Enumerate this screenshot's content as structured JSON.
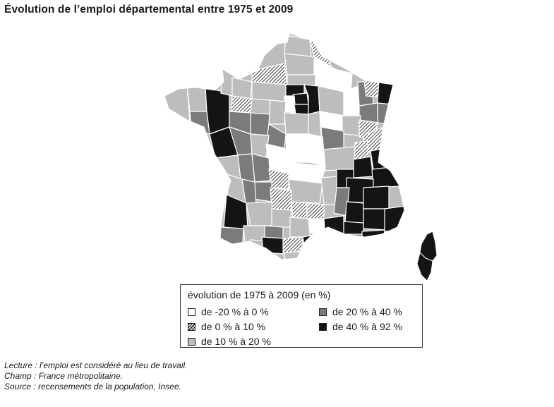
{
  "title": "Évolution de l’emploi départemental entre 1975 et 2009",
  "map": {
    "region": "France métropolitaine (départements)",
    "classes": {
      "neg": {
        "color": "#ffffff",
        "pattern": "none"
      },
      "low": {
        "color": "#ffffff",
        "pattern": "hatch"
      },
      "light": {
        "color": "#bdbdbd",
        "pattern": "none"
      },
      "mid": {
        "color": "#7b7b7b",
        "pattern": "none"
      },
      "dark": {
        "color": "#141414",
        "pattern": "none"
      }
    }
  },
  "legend": {
    "title": "évolution de 1975 à 2009 (en %)",
    "items": [
      {
        "key": "neg",
        "label": "de -20 % à 0 %"
      },
      {
        "key": "low",
        "label": "de 0 % à 10 %"
      },
      {
        "key": "light",
        "label": "de 10 % à 20 %"
      },
      {
        "key": "mid",
        "label": "de 20 % à 40 %"
      },
      {
        "key": "dark",
        "label": "de 40 % à 92 %"
      }
    ]
  },
  "notes": {
    "lecture": "Lecture : l’emploi est considéré au lieu de travail.",
    "champ": "Champ : France métropolitaine.",
    "source": "Source : recensements de la population, Insee."
  }
}
